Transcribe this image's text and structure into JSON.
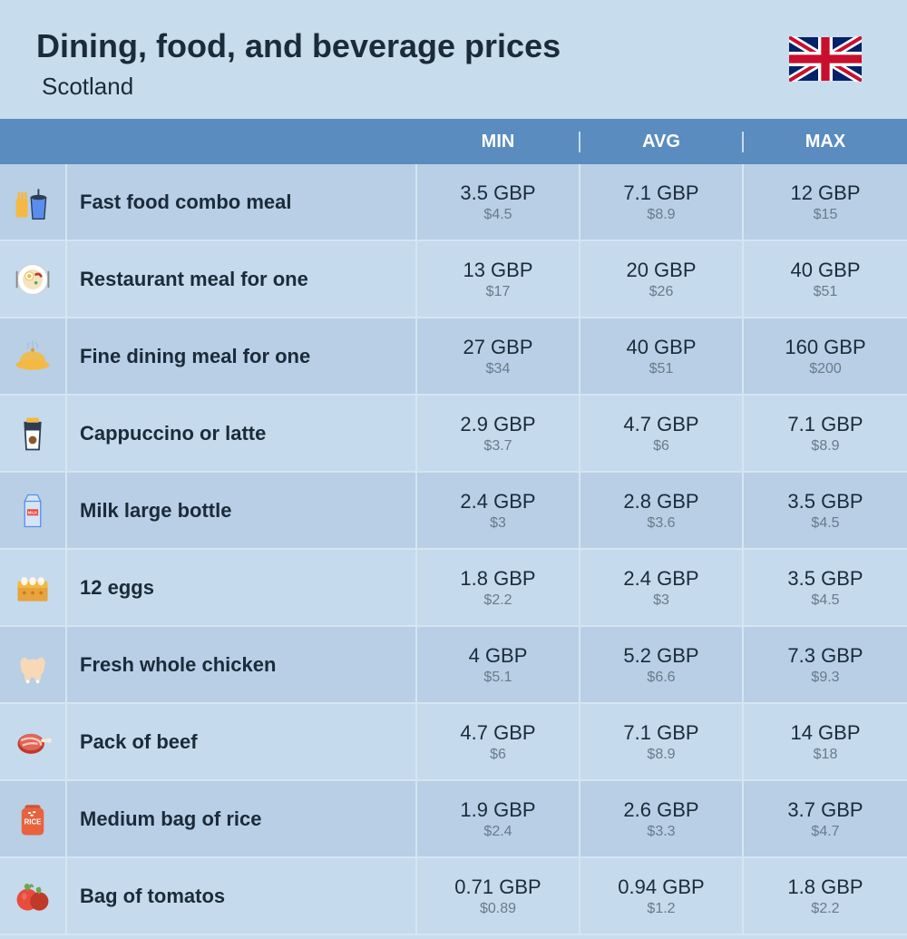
{
  "header": {
    "title": "Dining, food, and beverage prices",
    "subtitle": "Scotland"
  },
  "columns": {
    "min": "MIN",
    "avg": "AVG",
    "max": "MAX"
  },
  "colors": {
    "page_bg": "#c7dced",
    "header_bg": "#5a8cbf",
    "header_text": "#ffffff",
    "row_odd": "#b8cfe5",
    "row_even": "#c5daec",
    "text_dark": "#1a2b3a",
    "text_muted": "#6a7a8a",
    "divider": "#d5e5f2"
  },
  "rows": [
    {
      "icon": "fast-food-icon",
      "name": "Fast food combo meal",
      "min": {
        "gbp": "3.5 GBP",
        "usd": "$4.5"
      },
      "avg": {
        "gbp": "7.1 GBP",
        "usd": "$8.9"
      },
      "max": {
        "gbp": "12 GBP",
        "usd": "$15"
      }
    },
    {
      "icon": "restaurant-meal-icon",
      "name": "Restaurant meal for one",
      "min": {
        "gbp": "13 GBP",
        "usd": "$17"
      },
      "avg": {
        "gbp": "20 GBP",
        "usd": "$26"
      },
      "max": {
        "gbp": "40 GBP",
        "usd": "$51"
      }
    },
    {
      "icon": "fine-dining-icon",
      "name": "Fine dining meal for one",
      "min": {
        "gbp": "27 GBP",
        "usd": "$34"
      },
      "avg": {
        "gbp": "40 GBP",
        "usd": "$51"
      },
      "max": {
        "gbp": "160 GBP",
        "usd": "$200"
      }
    },
    {
      "icon": "coffee-icon",
      "name": "Cappuccino or latte",
      "min": {
        "gbp": "2.9 GBP",
        "usd": "$3.7"
      },
      "avg": {
        "gbp": "4.7 GBP",
        "usd": "$6"
      },
      "max": {
        "gbp": "7.1 GBP",
        "usd": "$8.9"
      }
    },
    {
      "icon": "milk-icon",
      "name": "Milk large bottle",
      "min": {
        "gbp": "2.4 GBP",
        "usd": "$3"
      },
      "avg": {
        "gbp": "2.8 GBP",
        "usd": "$3.6"
      },
      "max": {
        "gbp": "3.5 GBP",
        "usd": "$4.5"
      }
    },
    {
      "icon": "eggs-icon",
      "name": "12 eggs",
      "min": {
        "gbp": "1.8 GBP",
        "usd": "$2.2"
      },
      "avg": {
        "gbp": "2.4 GBP",
        "usd": "$3"
      },
      "max": {
        "gbp": "3.5 GBP",
        "usd": "$4.5"
      }
    },
    {
      "icon": "chicken-icon",
      "name": "Fresh whole chicken",
      "min": {
        "gbp": "4 GBP",
        "usd": "$5.1"
      },
      "avg": {
        "gbp": "5.2 GBP",
        "usd": "$6.6"
      },
      "max": {
        "gbp": "7.3 GBP",
        "usd": "$9.3"
      }
    },
    {
      "icon": "beef-icon",
      "name": "Pack of beef",
      "min": {
        "gbp": "4.7 GBP",
        "usd": "$6"
      },
      "avg": {
        "gbp": "7.1 GBP",
        "usd": "$8.9"
      },
      "max": {
        "gbp": "14 GBP",
        "usd": "$18"
      }
    },
    {
      "icon": "rice-icon",
      "name": "Medium bag of rice",
      "min": {
        "gbp": "1.9 GBP",
        "usd": "$2.4"
      },
      "avg": {
        "gbp": "2.6 GBP",
        "usd": "$3.3"
      },
      "max": {
        "gbp": "3.7 GBP",
        "usd": "$4.7"
      }
    },
    {
      "icon": "tomatos-icon",
      "name": "Bag of tomatos",
      "min": {
        "gbp": "0.71 GBP",
        "usd": "$0.89"
      },
      "avg": {
        "gbp": "0.94 GBP",
        "usd": "$1.2"
      },
      "max": {
        "gbp": "1.8 GBP",
        "usd": "$2.2"
      }
    }
  ]
}
